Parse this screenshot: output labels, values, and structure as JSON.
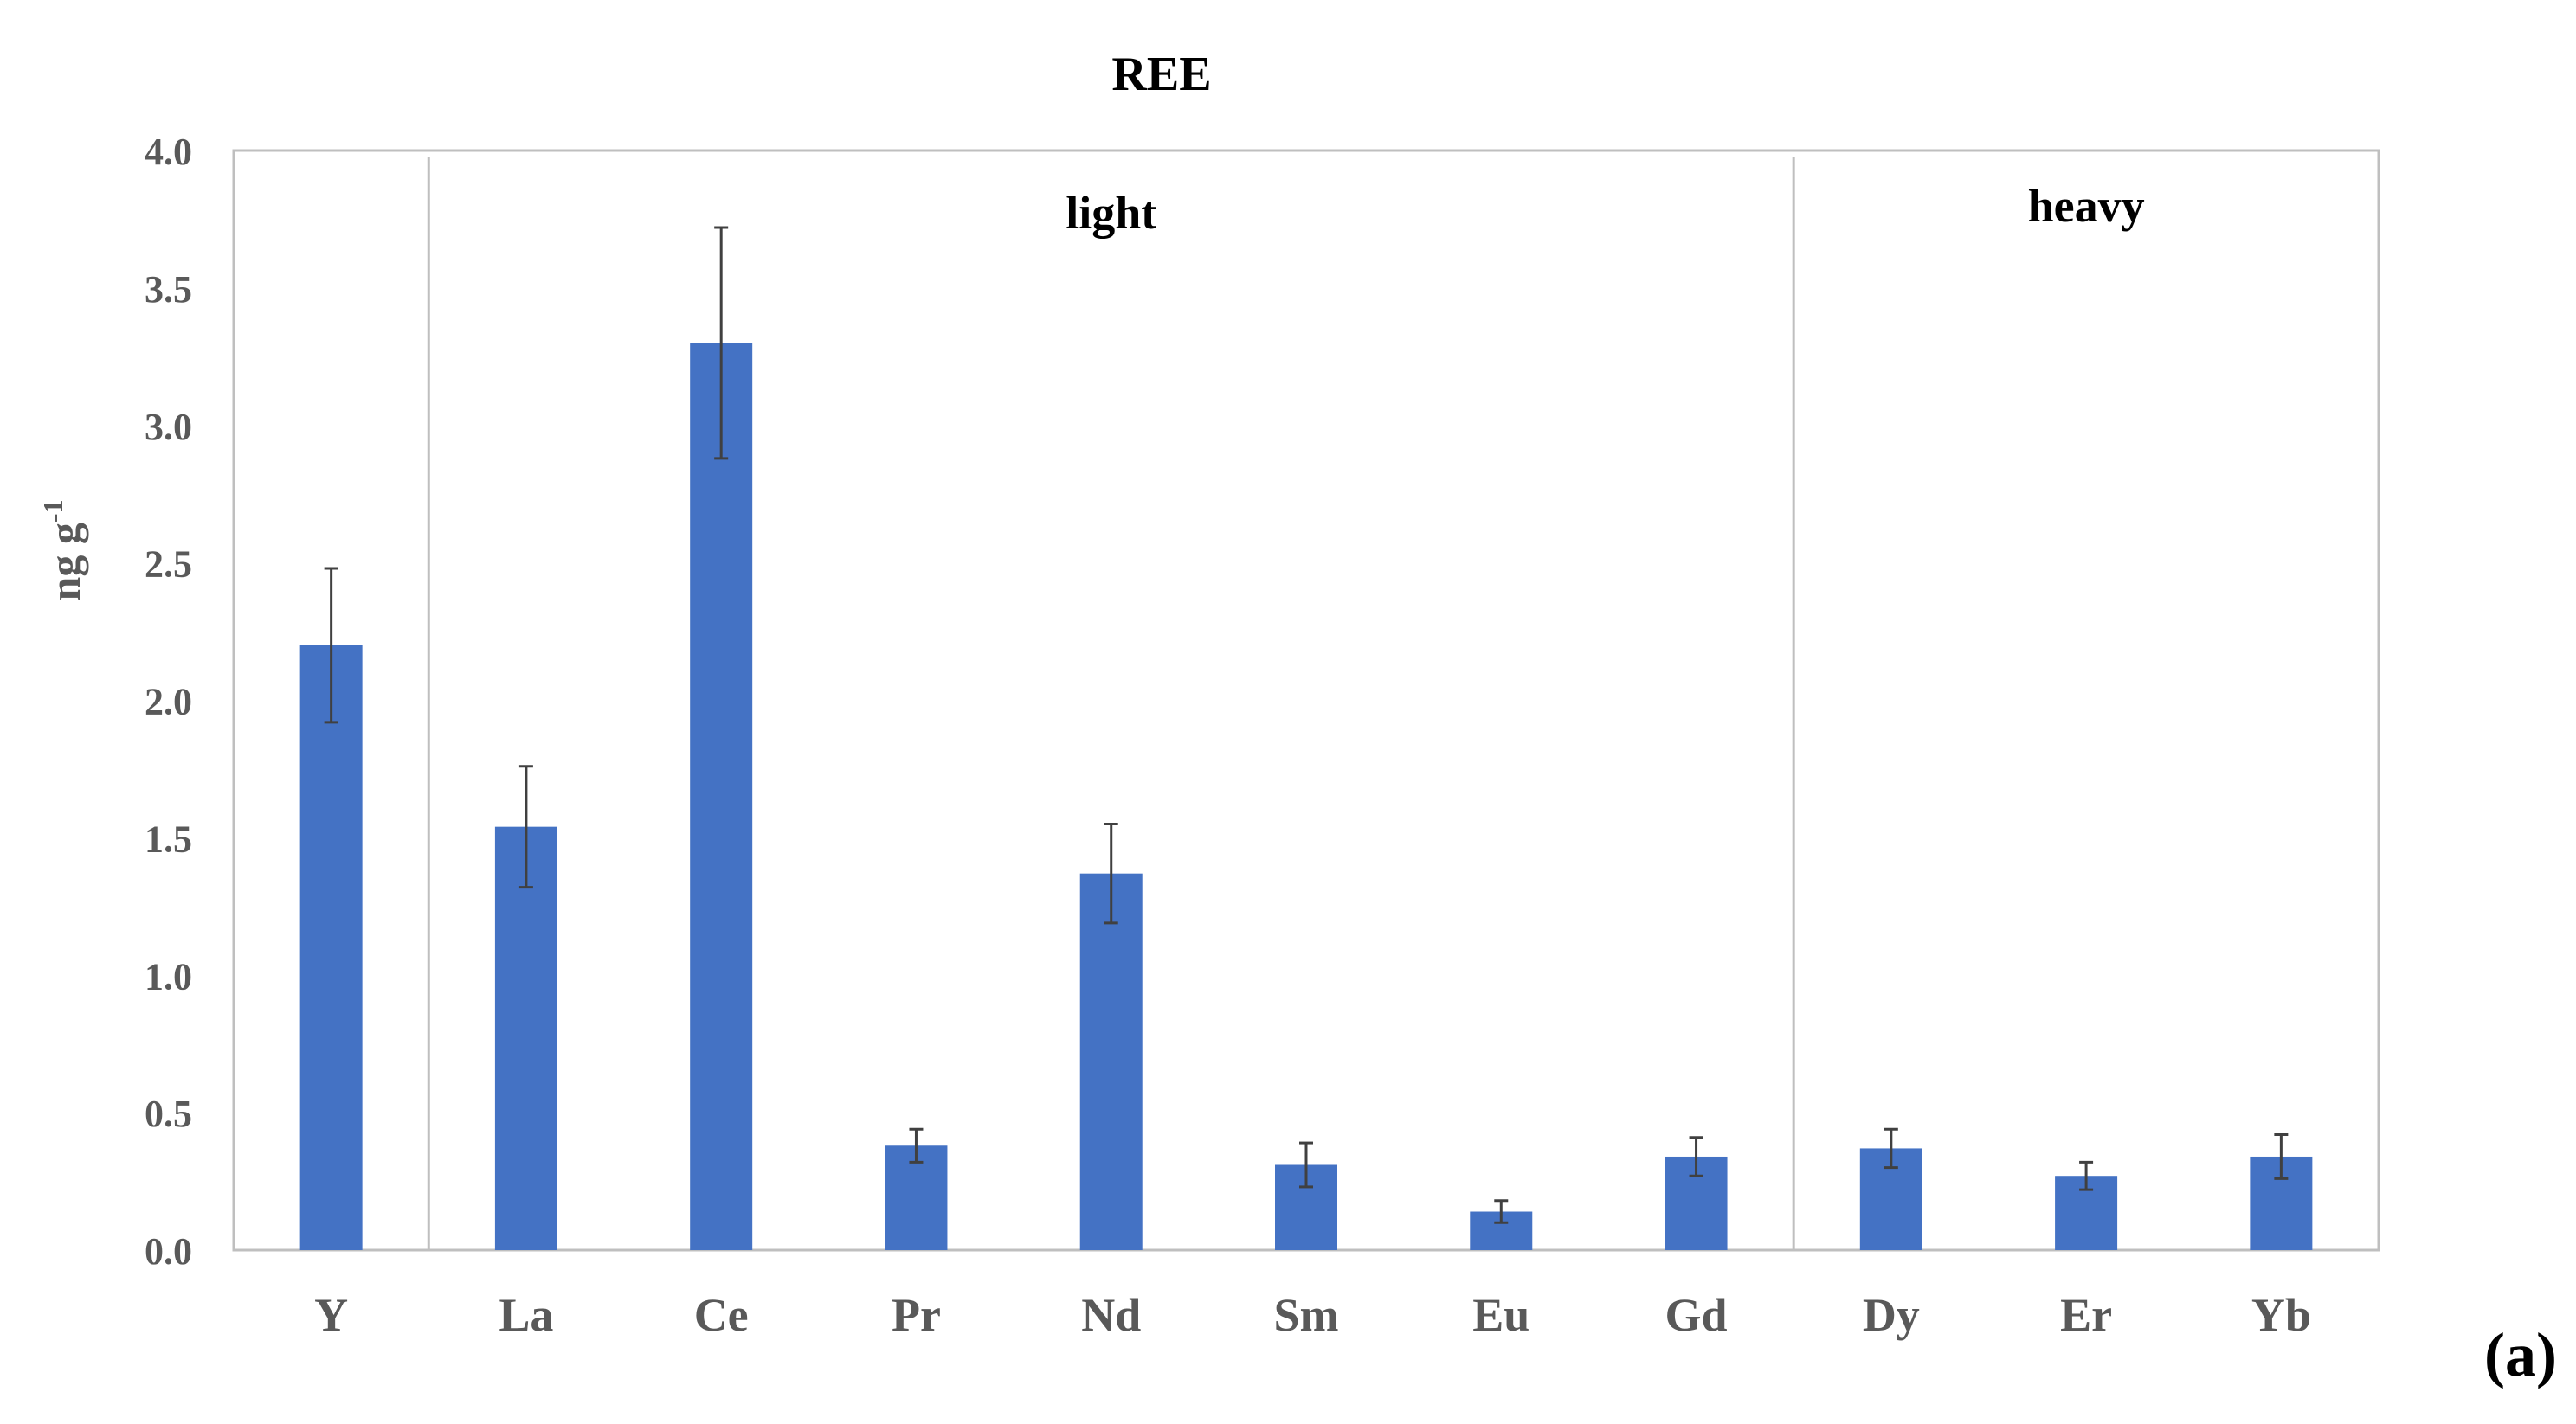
{
  "chart_data": {
    "type": "bar",
    "title": "REE",
    "ylabel_main": "ng g",
    "ylabel_sup": "-1",
    "panel_label": "(a)",
    "ylim": [
      0,
      4.0
    ],
    "ytick_labels": [
      "0.0",
      "0.5",
      "1.0",
      "1.5",
      "2.0",
      "2.5",
      "3.0",
      "3.5",
      "4.0"
    ],
    "categories": [
      "Y",
      "La",
      "Ce",
      "Pr",
      "Nd",
      "Sm",
      "Eu",
      "Gd",
      "Dy",
      "Er",
      "Yb"
    ],
    "values": [
      2.2,
      1.54,
      3.3,
      0.38,
      1.37,
      0.31,
      0.14,
      0.34,
      0.37,
      0.27,
      0.34
    ],
    "errors": [
      0.28,
      0.22,
      0.42,
      0.06,
      0.18,
      0.08,
      0.04,
      0.07,
      0.07,
      0.05,
      0.08
    ],
    "groups": [
      {
        "label": "",
        "categories": [
          "Y"
        ]
      },
      {
        "label": "light",
        "categories": [
          "La",
          "Ce",
          "Pr",
          "Nd",
          "Sm",
          "Eu",
          "Gd"
        ]
      },
      {
        "label": "heavy",
        "categories": [
          "Dy",
          "Er",
          "Yb"
        ]
      }
    ],
    "grid": false,
    "colors": {
      "bar": "#4472C4",
      "error": "#404040",
      "axis": "#BFBFBF",
      "text": "#595959"
    }
  }
}
